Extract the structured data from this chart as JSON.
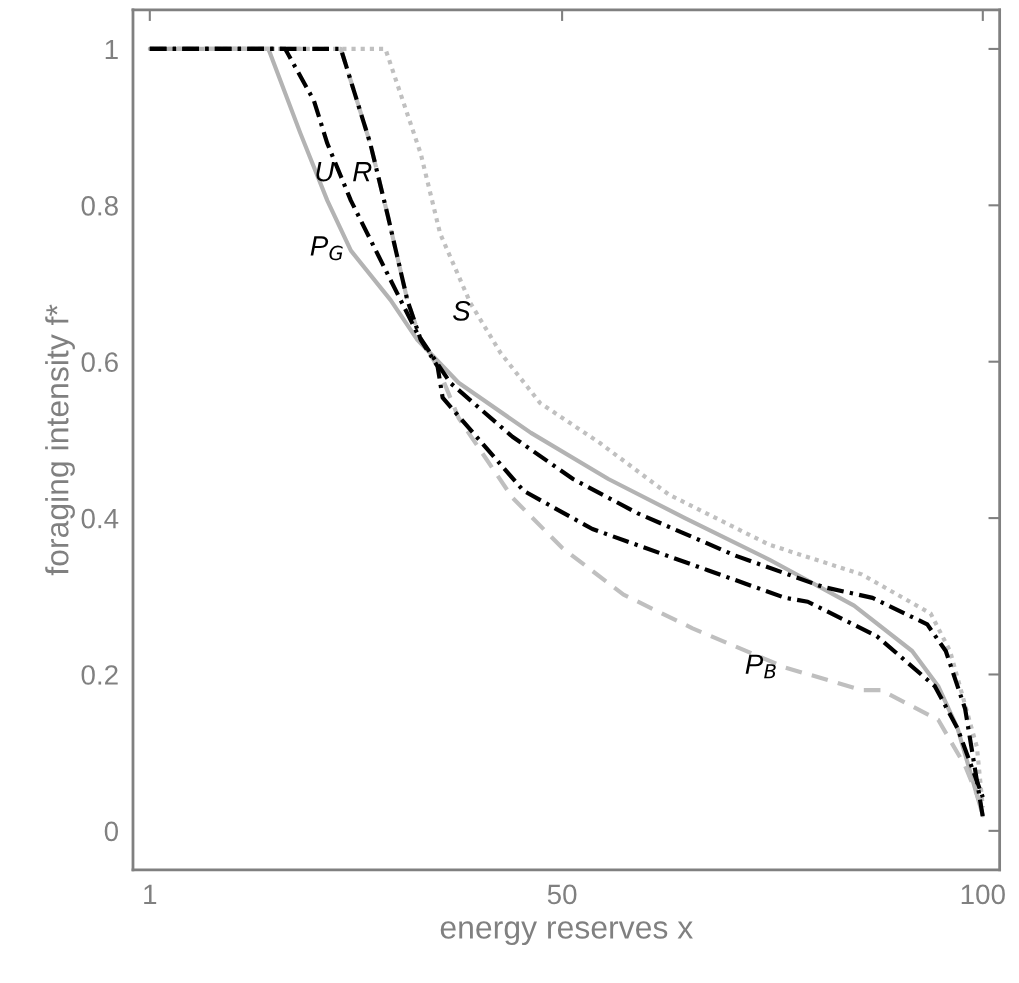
{
  "chart_data": {
    "type": "line",
    "xlabel": "energy reserves x",
    "ylabel": "foraging intensity f*",
    "xlim": [
      -1,
      102
    ],
    "ylim": [
      -0.05,
      1.05
    ],
    "xticks": [
      1,
      50,
      100
    ],
    "yticks": [
      0,
      {
        "value": 0.2,
        "label": "0.2"
      },
      {
        "value": 0.4,
        "label": "0.4"
      },
      {
        "value": 0.6,
        "label": "0.6"
      },
      {
        "value": 0.8,
        "label": "0.8"
      },
      1
    ],
    "grid": false,
    "legend": false,
    "series": [
      {
        "color": "#c0c0c0",
        "line_style": "dotted",
        "x": [
          1,
          29,
          33.2,
          35.5,
          39.1,
          42.7,
          47.4,
          54.5,
          62.7,
          74.6,
          85.6,
          93.8,
          96.1,
          99.3,
          100
        ],
        "values": [
          1,
          1,
          0.866,
          0.764,
          0.675,
          0.611,
          0.547,
          0.496,
          0.43,
          0.366,
          0.328,
          0.278,
          0.23,
          0.107,
          0.03
        ]
      },
      {
        "color": "#b3b3b3",
        "line_style": "solid",
        "x": [
          1,
          15.1,
          18.9,
          22.1,
          24.9,
          29.6,
          32.8,
          37.7,
          46.3,
          55.5,
          64.6,
          74.6,
          84.7,
          91.6,
          94.7,
          97,
          100
        ],
        "values": [
          1,
          1,
          0.892,
          0.806,
          0.742,
          0.679,
          0.628,
          0.573,
          0.509,
          0.45,
          0.4,
          0.347,
          0.288,
          0.23,
          0.185,
          0.131,
          0.02
        ]
      },
      {
        "color": "#bfbfbf",
        "line_style": "dashed",
        "x": [
          1,
          23.7,
          24,
          27.2,
          29.3,
          31.6,
          33.2,
          35.2,
          37.7,
          44.1,
          50,
          57.3,
          65.5,
          76.5,
          85.6,
          87.9,
          94.7,
          97.9,
          99.8
        ],
        "values": [
          1,
          1,
          0.99,
          0.879,
          0.786,
          0.679,
          0.628,
          0.594,
          0.528,
          0.426,
          0.362,
          0.302,
          0.259,
          0.209,
          0.18,
          0.18,
          0.142,
          0.083,
          0.033
        ]
      },
      {
        "color": "#000000",
        "line_style": "dashdot",
        "x": [
          1,
          17.1,
          17.4,
          20.5,
          22.1,
          24.9,
          28.8,
          32.8,
          36.7,
          44.1,
          51.3,
          59,
          70.6,
          81,
          86.9,
          93.4,
          95.6,
          97.9,
          100
        ],
        "values": [
          1,
          1,
          0.994,
          0.934,
          0.879,
          0.806,
          0.722,
          0.636,
          0.573,
          0.504,
          0.45,
          0.406,
          0.352,
          0.312,
          0.298,
          0.264,
          0.23,
          0.156,
          0.018
        ]
      },
      {
        "color": "#000000",
        "line_style": "dashdot",
        "x": [
          1,
          23.7,
          24,
          27.2,
          29.3,
          31.6,
          33.2,
          35.2,
          35.8,
          45.4,
          53.6,
          67.4,
          76.5,
          79.2,
          87.4,
          94.3,
          97,
          100
        ],
        "values": [
          1,
          1,
          0.99,
          0.879,
          0.786,
          0.679,
          0.628,
          0.594,
          0.554,
          0.435,
          0.386,
          0.333,
          0.298,
          0.293,
          0.249,
          0.185,
          0.131,
          0.043
        ]
      }
    ],
    "annotations": [
      {
        "text": "U",
        "x": 23.6,
        "y": 0.84
      },
      {
        "text": "R",
        "x": 28.1,
        "y": 0.84
      },
      {
        "text": "P$_{G}$",
        "x": 24.8,
        "y": 0.745
      },
      {
        "text": "S",
        "x": 39.8,
        "y": 0.662
      },
      {
        "text": "P$_{B}$",
        "x": 76.3,
        "y": 0.21
      }
    ]
  }
}
